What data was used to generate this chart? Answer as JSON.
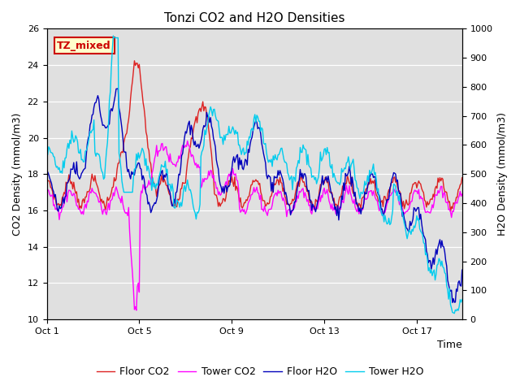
{
  "title": "Tonzi CO2 and H2O Densities",
  "xlabel": "Time",
  "ylabel_left": "CO2 Density (mmol/m3)",
  "ylabel_right": "H2O Density (mmol/m3)",
  "ylim_left": [
    10,
    26
  ],
  "ylim_right": [
    0,
    1000
  ],
  "yticks_left": [
    10,
    12,
    14,
    16,
    18,
    20,
    22,
    24,
    26
  ],
  "yticks_right": [
    0,
    100,
    200,
    300,
    400,
    500,
    600,
    700,
    800,
    900,
    1000
  ],
  "xtick_labels": [
    "Oct 1",
    "Oct 5",
    "Oct 9",
    "Oct 13",
    "Oct 17"
  ],
  "xtick_positions": [
    0,
    96,
    192,
    288,
    384
  ],
  "annotation_text": "TZ_mixed",
  "annotation_fg": "#cc0000",
  "annotation_bg": "#ffffcc",
  "plot_bg": "#e0e0e0",
  "fig_bg": "#ffffff",
  "colors": {
    "floor_co2": "#dd2222",
    "tower_co2": "#ff00ff",
    "floor_h2o": "#0000bb",
    "tower_h2o": "#00ccee"
  },
  "legend_labels": [
    "Floor CO2",
    "Tower CO2",
    "Floor H2O",
    "Tower H2O"
  ],
  "n_points": 432,
  "linewidth": 1.0
}
